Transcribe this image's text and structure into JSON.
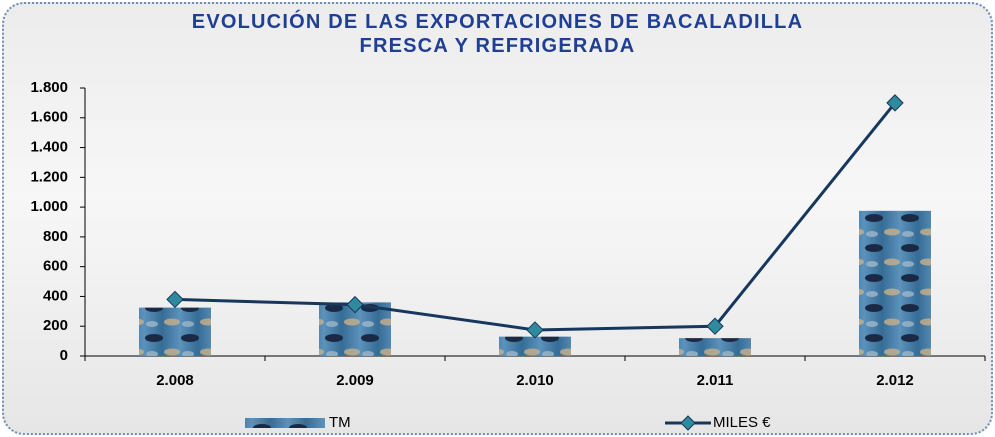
{
  "chart_data": {
    "type": "combo",
    "title": "EVOLUCIÓN DE LAS EXPORTACIONES DE BACALADILLA FRESCA Y REFRIGERADA",
    "categories": [
      "2.008",
      "2.009",
      "2.010",
      "2.011",
      "2.012"
    ],
    "series": [
      {
        "name": "TM",
        "type": "bar",
        "color": "#3f7fb0",
        "values": [
          325,
          360,
          130,
          120,
          975
        ]
      },
      {
        "name": "MILES €",
        "type": "line",
        "color": "#17375e",
        "marker_color": "#2e8a9c",
        "values": [
          380,
          345,
          175,
          200,
          1700
        ]
      }
    ],
    "ylim": [
      0,
      1800
    ],
    "yticks": [
      0,
      200,
      400,
      600,
      800,
      {
        "value": 1000,
        "label": "1.000"
      },
      {
        "value": 1200,
        "label": "1.200"
      },
      {
        "value": 1400,
        "label": "1.400"
      },
      {
        "value": 1600,
        "label": "1.600"
      },
      {
        "value": 1800,
        "label": "1.800"
      }
    ],
    "grid": false,
    "legend": "bottom"
  }
}
